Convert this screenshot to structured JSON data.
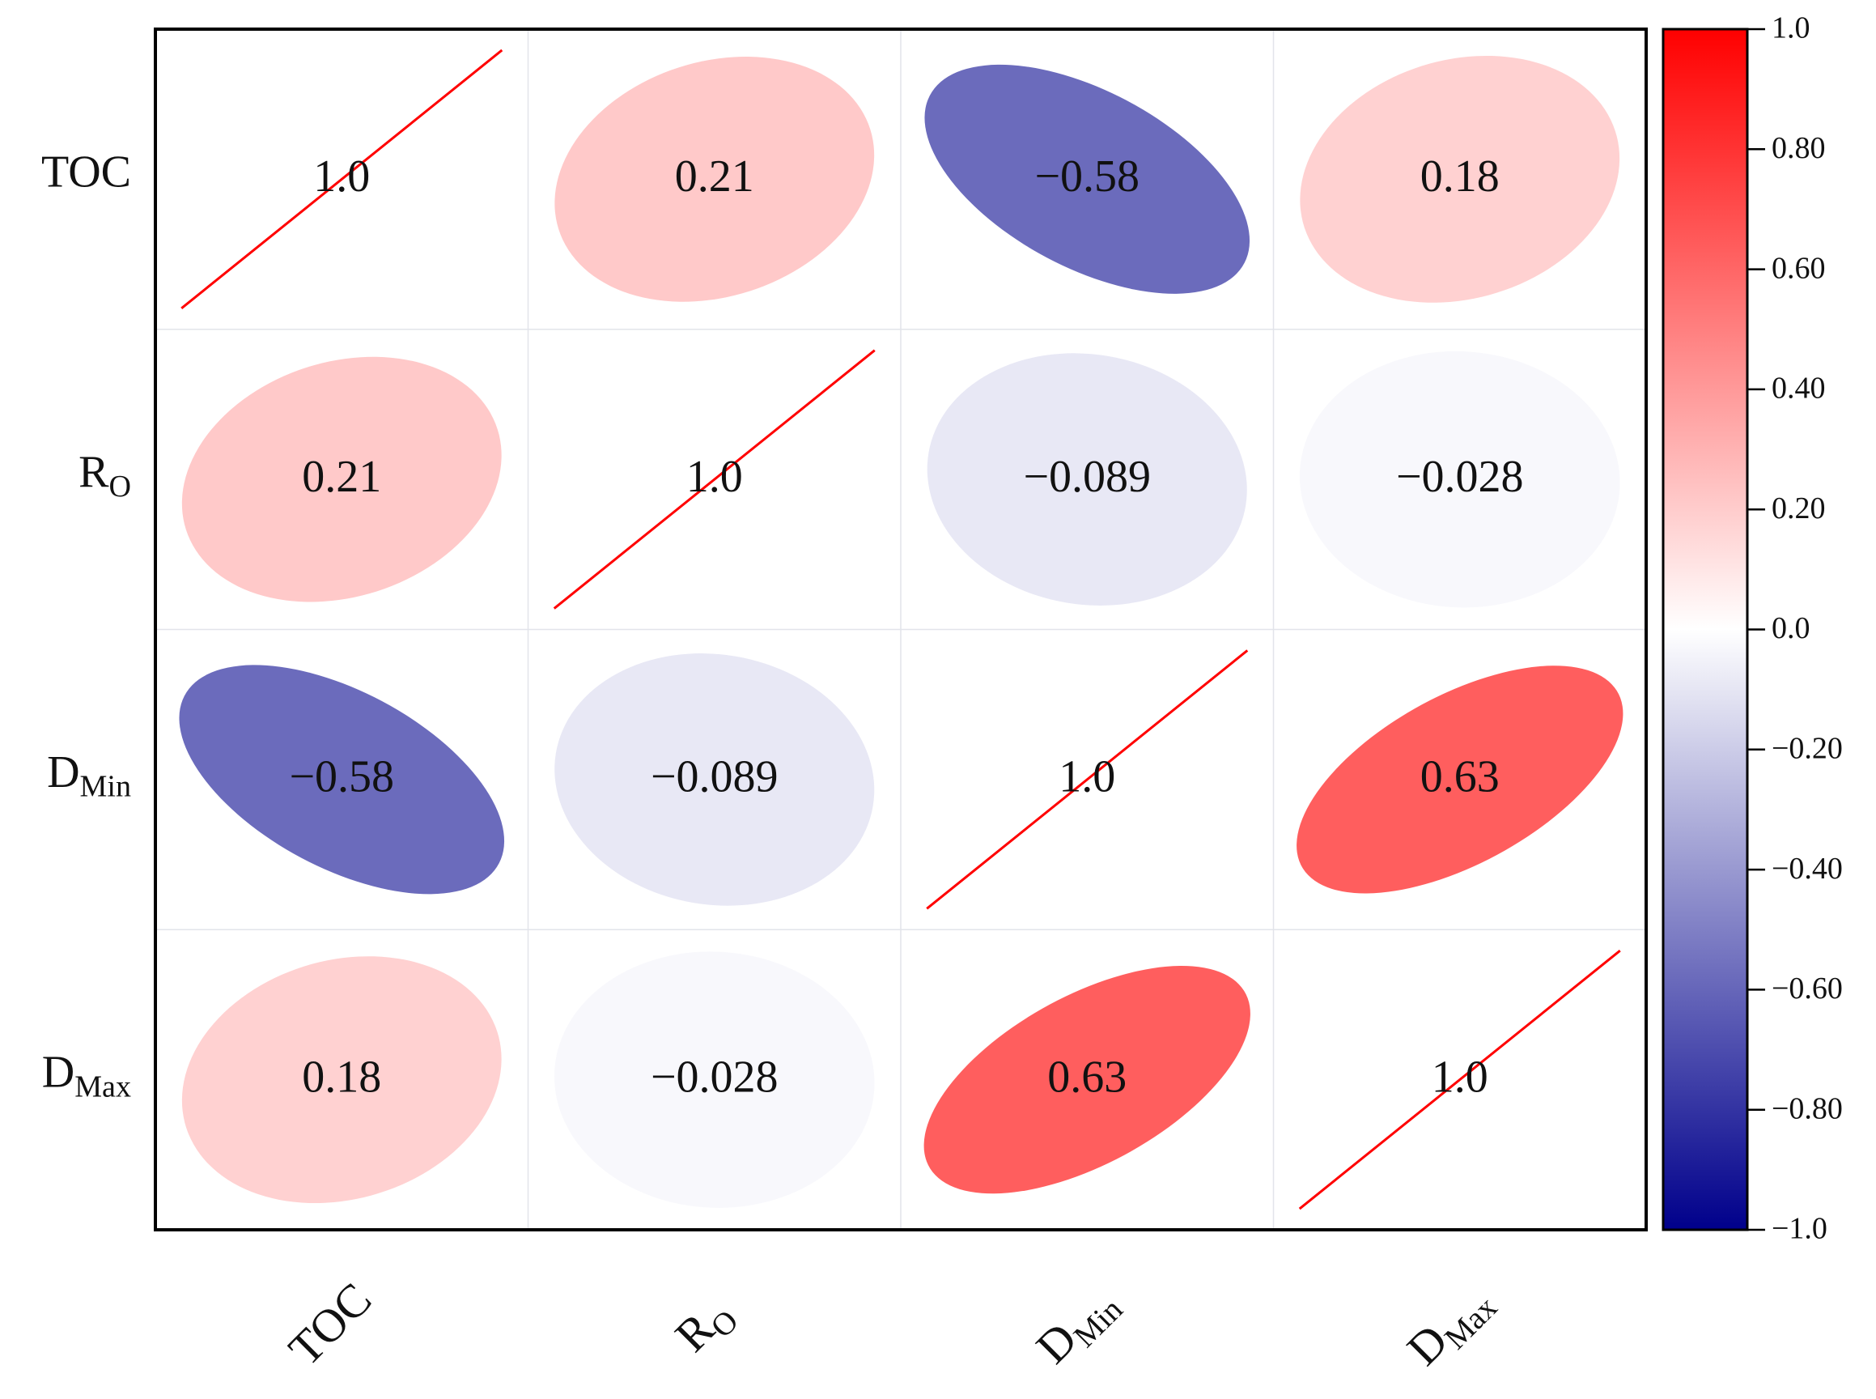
{
  "chart_data": {
    "type": "heatmap",
    "style": "correlation-ellipse-matrix",
    "variables": [
      {
        "base": "TOC",
        "sub": ""
      },
      {
        "base": "R",
        "sub": "O"
      },
      {
        "base": "D",
        "sub": "Min"
      },
      {
        "base": "D",
        "sub": "Max"
      }
    ],
    "matrix": [
      [
        1.0,
        0.21,
        -0.58,
        0.18
      ],
      [
        0.21,
        1.0,
        -0.089,
        -0.028
      ],
      [
        -0.58,
        -0.089,
        1.0,
        0.63
      ],
      [
        0.18,
        -0.028,
        0.63,
        1.0
      ]
    ],
    "value_labels": [
      [
        "1.0",
        "0.21",
        "−0.58",
        "0.18"
      ],
      [
        "0.21",
        "1.0",
        "−0.089",
        "−0.028"
      ],
      [
        "−0.58",
        "−0.089",
        "1.0",
        "0.63"
      ],
      [
        "0.18",
        "−0.028",
        "0.63",
        "1.0"
      ]
    ],
    "colorbar": {
      "range": [
        -1.0,
        1.0
      ],
      "ticks": [
        1.0,
        0.8,
        0.6,
        0.4,
        0.2,
        0.0,
        -0.2,
        -0.4,
        -0.6,
        -0.8,
        -1.0
      ],
      "tick_labels": [
        "1.0",
        "0.80",
        "0.60",
        "0.40",
        "0.20",
        "0.0",
        "−0.20",
        "−0.40",
        "−0.60",
        "−0.80",
        "−1.0"
      ],
      "colormap": "bwr",
      "colors": {
        "low": "#00008b",
        "mid": "#ffffff",
        "high": "#ff0000"
      }
    },
    "diagonal_line_color": "#ff0000",
    "grid": true,
    "x_tick_rotation": "45deg"
  }
}
